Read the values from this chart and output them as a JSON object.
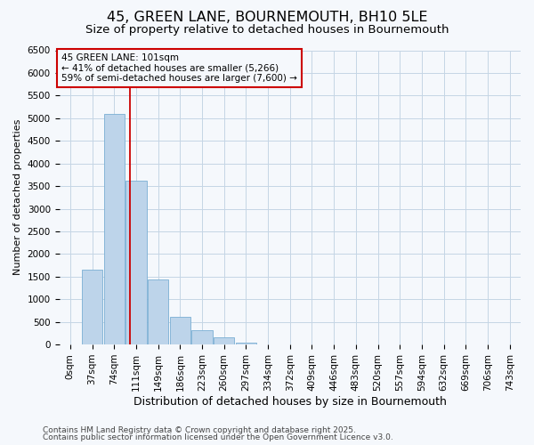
{
  "title": "45, GREEN LANE, BOURNEMOUTH, BH10 5LE",
  "subtitle": "Size of property relative to detached houses in Bournemouth",
  "xlabel": "Distribution of detached houses by size in Bournemouth",
  "ylabel": "Number of detached properties",
  "bar_labels": [
    "0sqm",
    "37sqm",
    "74sqm",
    "111sqm",
    "149sqm",
    "186sqm",
    "223sqm",
    "260sqm",
    "297sqm",
    "334sqm",
    "372sqm",
    "409sqm",
    "446sqm",
    "483sqm",
    "520sqm",
    "557sqm",
    "594sqm",
    "632sqm",
    "669sqm",
    "706sqm",
    "743sqm"
  ],
  "bar_values": [
    0,
    1650,
    5100,
    3620,
    1430,
    615,
    315,
    155,
    45,
    0,
    0,
    0,
    0,
    0,
    0,
    0,
    0,
    0,
    0,
    0,
    0
  ],
  "bar_color": "#bdd4ea",
  "bar_edge_color": "#7aafd4",
  "ylim": [
    0,
    6500
  ],
  "yticks": [
    0,
    500,
    1000,
    1500,
    2000,
    2500,
    3000,
    3500,
    4000,
    4500,
    5000,
    5500,
    6000,
    6500
  ],
  "vline_x": 2.73,
  "vline_color": "#cc0000",
  "annot_line1": "45 GREEN LANE: 101sqm",
  "annot_line2": "← 41% of detached houses are smaller (5,266)",
  "annot_line3": "59% of semi-detached houses are larger (7,600) →",
  "annotation_box_color": "#cc0000",
  "footer1": "Contains HM Land Registry data © Crown copyright and database right 2025.",
  "footer2": "Contains public sector information licensed under the Open Government Licence v3.0.",
  "bg_color": "#f5f8fc",
  "grid_color": "#c5d5e5",
  "title_fontsize": 11.5,
  "subtitle_fontsize": 9.5,
  "xlabel_fontsize": 9,
  "ylabel_fontsize": 8,
  "tick_fontsize": 7.5,
  "annot_fontsize": 7.5,
  "footer_fontsize": 6.5
}
